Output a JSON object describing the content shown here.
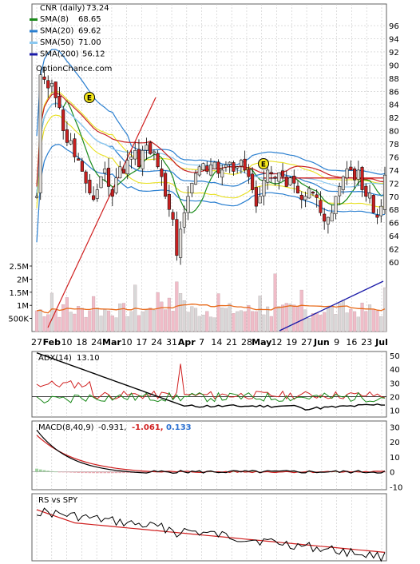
{
  "chart_data": [
    {
      "panel": "price",
      "type": "candlestick",
      "title": "CNR (daily)",
      "last_price": "73.24",
      "watermark": "OptionChance.com",
      "ylim": [
        59,
        97
      ],
      "y_ticks": [
        60,
        62,
        64,
        66,
        68,
        70,
        72,
        74,
        76,
        78,
        80,
        82,
        84,
        86,
        88,
        90,
        92,
        94,
        96
      ],
      "legend": [
        {
          "name": "SMA(8)",
          "value": "68.65",
          "color": "#1a8a1a"
        },
        {
          "name": "SMA(20)",
          "value": "69.62",
          "color": "#2a7fd0"
        },
        {
          "name": "SMA(50)",
          "value": "71.00",
          "color": "#8ac8f0"
        },
        {
          "name": "SMA(200)",
          "value": "56.12",
          "color": "#1a1aa8"
        }
      ],
      "legend_placement": "top-left",
      "x_tick_labels": [
        "27",
        "Feb",
        "10",
        "18",
        "24",
        "Mar",
        "10",
        "17",
        "24",
        "31",
        "Apr",
        "7",
        "14",
        "21",
        "28",
        "May",
        "12",
        "19",
        "27",
        "Jun",
        "9",
        "16",
        "23",
        "Jul"
      ],
      "x_bold_labels": [
        "Feb",
        "Mar",
        "Apr",
        "May",
        "Jun",
        "Jul"
      ],
      "closes": [
        70.0,
        88.5,
        87.8,
        86.5,
        87.2,
        85.0,
        83.5,
        80.0,
        78.2,
        78.5,
        76.0,
        75.5,
        73.8,
        72.0,
        70.5,
        69.5,
        71.0,
        73.0,
        74.2,
        71.5,
        70.0,
        72.8,
        74.5,
        73.5,
        75.5,
        76.0,
        77.0,
        74.5,
        77.0,
        77.8,
        76.5,
        76.8,
        74.5,
        73.0,
        70.0,
        68.0,
        66.5,
        61.0,
        65.0,
        67.5,
        70.0,
        72.0,
        73.5,
        74.5,
        75.0,
        73.8,
        74.8,
        75.2,
        73.5,
        74.0,
        74.8,
        75.2,
        73.8,
        74.5,
        75.5,
        74.0,
        73.0,
        71.0,
        68.5,
        70.0,
        72.5,
        74.0,
        73.5,
        72.8,
        73.6,
        73.0,
        71.5,
        72.8,
        72.0,
        70.5,
        69.5,
        70.0,
        71.2,
        70.6,
        69.8,
        67.5,
        66.2,
        66.8,
        67.5,
        70.0,
        71.5,
        73.0,
        74.2,
        74.0,
        72.5,
        74.0,
        71.0,
        70.0,
        70.5,
        67.5,
        66.8,
        68.5,
        73.24
      ],
      "sma_lines": [
        "SMA(8)",
        "SMA(20)",
        "SMA(50)",
        "SMA(200)"
      ],
      "bollinger_bands": [
        "#2a7fd0",
        "#e8e020"
      ],
      "trendline_color": "#d02020",
      "horizontal_line": {
        "value": 72.8,
        "color": "#d02020"
      },
      "event_markers": [
        {
          "label": "E",
          "near": "Feb 10"
        },
        {
          "label": "E",
          "near": "May"
        }
      ]
    },
    {
      "panel": "volume",
      "type": "bar",
      "ylabels": [
        "2.5M",
        "2M",
        "1.5M",
        "1M",
        "500K"
      ],
      "y_values": [
        2500000,
        2000000,
        1500000,
        1000000,
        500000
      ],
      "ylim": [
        0,
        2900000
      ]
    },
    {
      "panel": "adx",
      "type": "line",
      "title": "ADX(14)",
      "value": "13.10",
      "ylim": [
        5,
        53
      ],
      "y_ticks": [
        10,
        20,
        30,
        40,
        50
      ],
      "reference_line": 20,
      "series": [
        {
          "name": "ADX(14)",
          "color": "#000000"
        },
        {
          "color": "#d02020"
        },
        {
          "color": "#1a8a1a"
        }
      ]
    },
    {
      "panel": "macd",
      "type": "line",
      "title": "MACD(8,40,9)",
      "value": "-0.931,",
      "signal_value": "-1.061,",
      "histogram_value": "0.133",
      "ylim": [
        -12,
        34
      ],
      "y_ticks": [
        -10,
        0,
        10,
        20,
        30
      ],
      "series": [
        {
          "name": "MACD",
          "color": "#000000"
        },
        {
          "name": "Signal",
          "color": "#d02020"
        },
        {
          "name": "Histogram",
          "color": "#2a6fd0"
        }
      ]
    },
    {
      "panel": "rs",
      "type": "line",
      "title": "RS vs SPY",
      "series": [
        {
          "color": "#000000"
        },
        {
          "color": "#d02020"
        }
      ]
    }
  ],
  "colors": {
    "up": "#e0dcd8",
    "down": "#c82020",
    "grid": "#c8c8c8",
    "panel_border": "#606060",
    "volume_bar": "#f0bcc8",
    "volume_bar_alt": "#d8d8d8",
    "volume_ma": "#e86a1a"
  }
}
